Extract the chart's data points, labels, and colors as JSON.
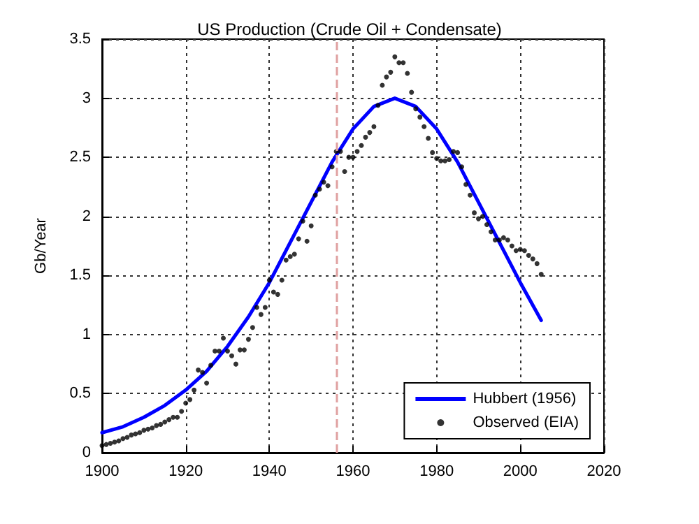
{
  "chart_data": {
    "type": "scatter",
    "title": "US Production (Crude Oil + Condensate)",
    "ylabel": "Gb/Year",
    "xlim": [
      1900,
      2020
    ],
    "xticks": [
      1900,
      1920,
      1940,
      1960,
      1980,
      2000,
      2020
    ],
    "ylim": [
      0,
      3.5
    ],
    "yticks": [
      0,
      0.5,
      1,
      1.5,
      2,
      2.5,
      3,
      3.5
    ],
    "grid": true,
    "legend": "bottom right",
    "ref_lines": [
      {
        "axis": "x",
        "value": 1956,
        "color": "#e0a0a0",
        "line_style": "dashed"
      }
    ],
    "series": [
      {
        "name": "Hubbert (1956)",
        "type": "line",
        "color": "#0000ff",
        "marker": "none",
        "line_style": "solid",
        "x": [
          1900,
          1905,
          1910,
          1915,
          1920,
          1925,
          1930,
          1935,
          1940,
          1945,
          1950,
          1955,
          1960,
          1965,
          1970,
          1975,
          1980,
          1985,
          1990,
          1995,
          2000,
          2005
        ],
        "values": [
          0.17,
          0.22,
          0.3,
          0.4,
          0.53,
          0.69,
          0.9,
          1.15,
          1.44,
          1.78,
          2.12,
          2.46,
          2.74,
          2.93,
          3.0,
          2.93,
          2.74,
          2.46,
          2.12,
          1.78,
          1.44,
          1.12
        ]
      },
      {
        "name": "Observed (EIA)",
        "color": "#000000",
        "marker": "circle",
        "x": [
          1900,
          1901,
          1902,
          1903,
          1904,
          1905,
          1906,
          1907,
          1908,
          1909,
          1910,
          1911,
          1912,
          1913,
          1914,
          1915,
          1916,
          1917,
          1918,
          1919,
          1920,
          1921,
          1922,
          1923,
          1924,
          1925,
          1926,
          1927,
          1928,
          1929,
          1930,
          1931,
          1932,
          1933,
          1934,
          1935,
          1936,
          1937,
          1938,
          1939,
          1940,
          1941,
          1942,
          1943,
          1944,
          1945,
          1946,
          1947,
          1948,
          1949,
          1950,
          1951,
          1952,
          1953,
          1954,
          1955,
          1956,
          1957,
          1958,
          1959,
          1960,
          1961,
          1962,
          1963,
          1964,
          1965,
          1966,
          1967,
          1968,
          1969,
          1970,
          1971,
          1972,
          1973,
          1974,
          1975,
          1976,
          1977,
          1978,
          1979,
          1980,
          1981,
          1982,
          1983,
          1984,
          1985,
          1986,
          1987,
          1988,
          1989,
          1990,
          1991,
          1992,
          1993,
          1994,
          1995,
          1996,
          1997,
          1998,
          1999,
          2000,
          2001,
          2002,
          2003,
          2004,
          2005
        ],
        "values": [
          0.06,
          0.07,
          0.08,
          0.09,
          0.1,
          0.12,
          0.13,
          0.15,
          0.16,
          0.17,
          0.19,
          0.2,
          0.21,
          0.23,
          0.24,
          0.26,
          0.28,
          0.3,
          0.3,
          0.35,
          0.42,
          0.45,
          0.53,
          0.7,
          0.68,
          0.59,
          0.74,
          0.86,
          0.86,
          0.97,
          0.86,
          0.82,
          0.75,
          0.87,
          0.87,
          0.96,
          1.06,
          1.23,
          1.17,
          1.23,
          1.46,
          1.36,
          1.34,
          1.46,
          1.63,
          1.66,
          1.68,
          1.81,
          1.96,
          1.79,
          1.92,
          2.18,
          2.23,
          2.29,
          2.26,
          2.42,
          2.55,
          2.55,
          2.38,
          2.5,
          2.5,
          2.55,
          2.6,
          2.67,
          2.71,
          2.76,
          2.94,
          3.11,
          3.18,
          3.22,
          3.35,
          3.3,
          3.3,
          3.21,
          3.05,
          2.91,
          2.84,
          2.76,
          2.66,
          2.54,
          2.49,
          2.47,
          2.47,
          2.48,
          2.55,
          2.54,
          2.42,
          2.27,
          2.18,
          2.03,
          1.98,
          2.0,
          1.93,
          1.87,
          1.8,
          1.8,
          1.82,
          1.8,
          1.75,
          1.71,
          1.72,
          1.71,
          1.67,
          1.64,
          1.6,
          1.51
        ]
      }
    ]
  }
}
